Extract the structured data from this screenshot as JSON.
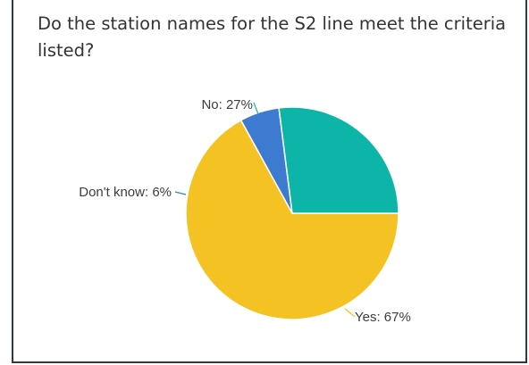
{
  "question": "Do the station names for the S2 line meet the criteria listed?",
  "chart_data": {
    "type": "pie",
    "title": "Do the station names for the S2 line meet the criteria listed?",
    "slices": [
      {
        "label": "Yes",
        "value": 67,
        "display": "Yes: 67%",
        "color": "#f4c323"
      },
      {
        "label": "Don't know",
        "value": 6,
        "display": "Don't know: 6%",
        "color": "#3d7bd0"
      },
      {
        "label": "No",
        "value": 27,
        "display": "No: 27%",
        "color": "#0db5a8"
      }
    ],
    "legend": "none"
  }
}
